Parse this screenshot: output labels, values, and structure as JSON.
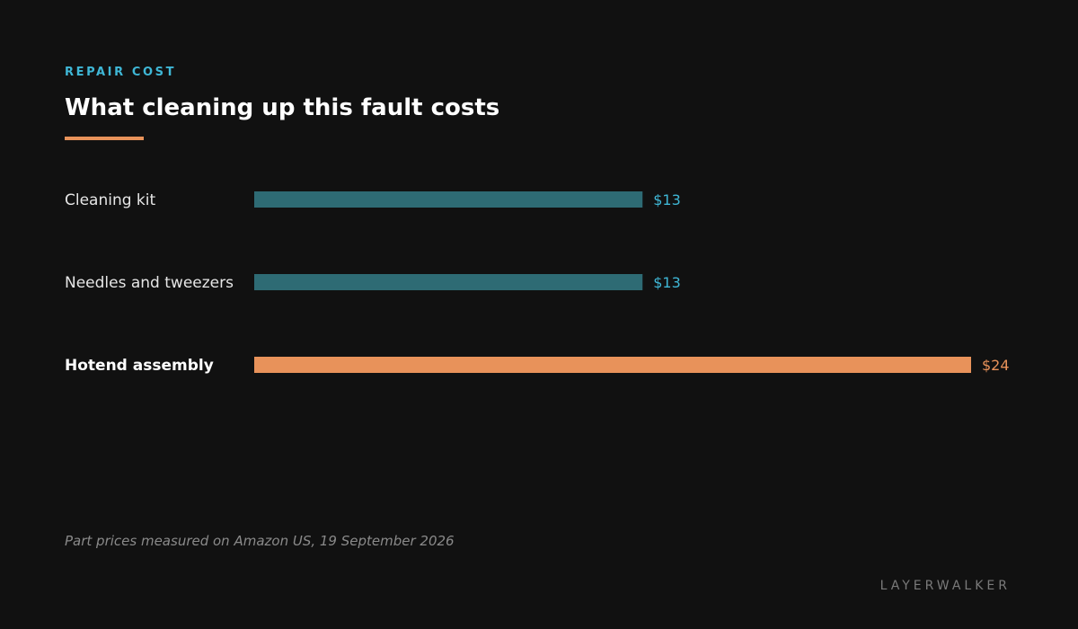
{
  "header": {
    "eyebrow": "REPAIR COST",
    "title": "What cleaning up this fault costs"
  },
  "chart_data": {
    "type": "bar",
    "orientation": "horizontal",
    "categories": [
      "Cleaning kit",
      "Needles and tweezers",
      "Hotend assembly"
    ],
    "values": [
      13,
      13,
      24
    ],
    "labels": [
      "$13",
      "$13",
      "$24"
    ],
    "highlight": "Hotend assembly",
    "title": "What cleaning up this fault costs",
    "xlabel": "",
    "ylabel": "",
    "xlim": [
      0,
      24
    ],
    "grid": false,
    "legend": "none"
  },
  "colors": {
    "accent": "#3fb7d6",
    "bar": "#2e6b74",
    "highlight": "#e8925a",
    "background": "#111111"
  },
  "footer": {
    "note": "Part prices measured on Amazon US, 19 September 2026",
    "brand": "LAYERWALKER"
  }
}
